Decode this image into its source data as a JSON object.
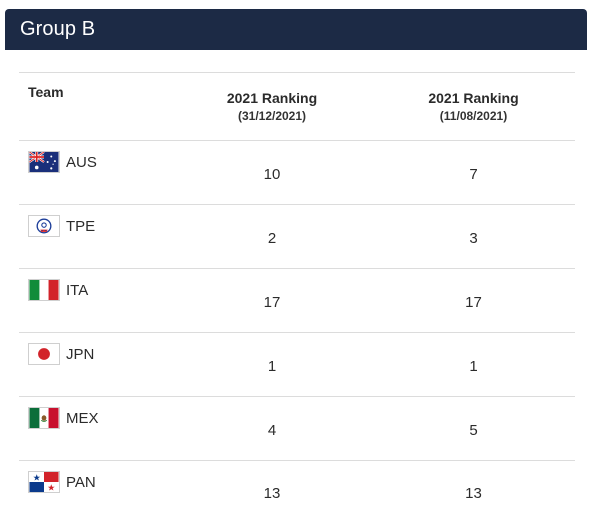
{
  "group": {
    "title": "Group B"
  },
  "table": {
    "headers": {
      "team": "Team",
      "rank1_title": "2021 Ranking",
      "rank1_date": "(31/12/2021)",
      "rank2_title": "2021 Ranking",
      "rank2_date": "(11/08/2021)"
    },
    "rows": [
      {
        "code": "AUS",
        "flag_icon": "australia-flag-icon",
        "rank1": "10",
        "rank2": "7"
      },
      {
        "code": "TPE",
        "flag_icon": "chinese-taipei-flag-icon",
        "rank1": "2",
        "rank2": "3"
      },
      {
        "code": "ITA",
        "flag_icon": "italy-flag-icon",
        "rank1": "17",
        "rank2": "17"
      },
      {
        "code": "JPN",
        "flag_icon": "japan-flag-icon",
        "rank1": "1",
        "rank2": "1"
      },
      {
        "code": "MEX",
        "flag_icon": "mexico-flag-icon",
        "rank1": "4",
        "rank2": "5"
      },
      {
        "code": "PAN",
        "flag_icon": "panama-flag-icon",
        "rank1": "13",
        "rank2": "13"
      }
    ]
  },
  "colors": {
    "header_bg": "#1c2a45",
    "divider": "#dcdcdc"
  }
}
